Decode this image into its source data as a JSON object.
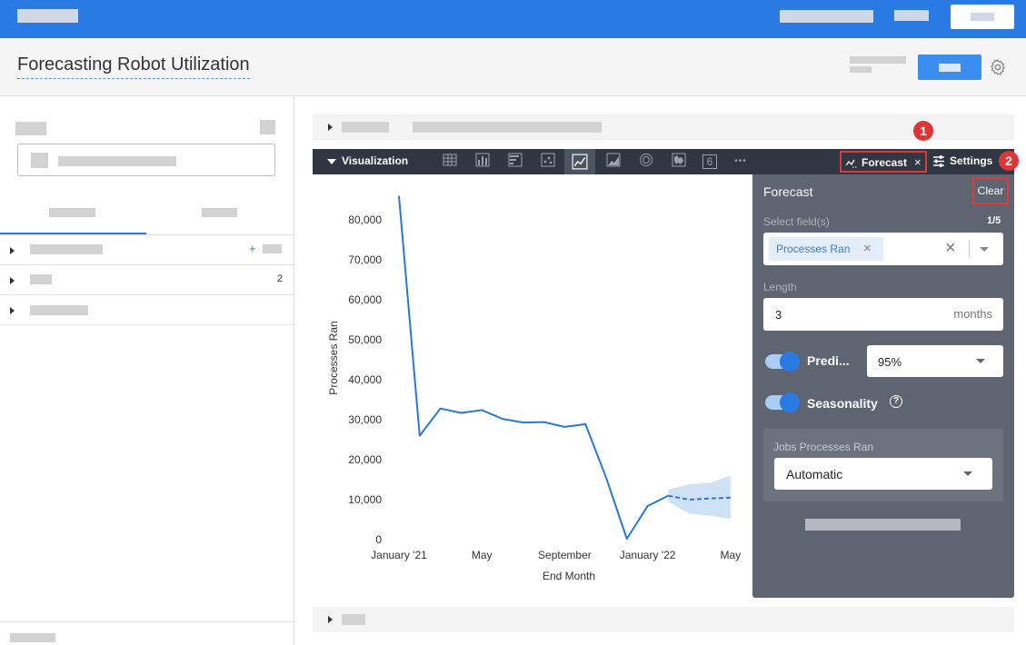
{
  "header": {
    "title": "Forecasting Robot Utilization"
  },
  "left": {
    "tree_rows": [
      {
        "count": ""
      },
      {
        "count": "2"
      },
      {
        "count": ""
      }
    ]
  },
  "viz": {
    "label": "Visualization",
    "forecast_tab": "Forecast",
    "settings_tab": "Settings",
    "badge1": "1",
    "badge2": "2",
    "icons": [
      "table-icon",
      "column-chart-icon",
      "bar-chart-icon",
      "scatter-icon",
      "line-chart-icon",
      "area-chart-icon",
      "pie-chart-icon",
      "map-icon",
      "single-value-icon",
      "more-icon"
    ],
    "single_value_glyph": "6",
    "more_glyph": "•••"
  },
  "forecast_panel": {
    "title": "Forecast",
    "clear": "Clear",
    "select_label": "Select field(s)",
    "select_count": "1/5",
    "chip": "Processes Ran",
    "length_label": "Length",
    "length_value": "3",
    "length_unit": "months",
    "prediction_label": "Predi...",
    "prediction_value": "95%",
    "seasonality_label": "Seasonality",
    "help_glyph": "?",
    "jobs_label": "Jobs Processes Ran",
    "jobs_value": "Automatic"
  },
  "chart_data": {
    "type": "line",
    "xlabel": "End Month",
    "ylabel": "Processes Ran",
    "ylim": [
      0,
      90000
    ],
    "y_ticks": [
      "0",
      "10,000",
      "20,000",
      "30,000",
      "40,000",
      "50,000",
      "60,000",
      "70,000",
      "80,000"
    ],
    "x_ticks": [
      "January '21",
      "May",
      "September",
      "January '22",
      "May"
    ],
    "series": [
      {
        "values": [
          86000,
          26000,
          32800,
          31700,
          32400,
          30200,
          29300,
          29400,
          28200,
          28900,
          15500,
          200,
          8400,
          11000
        ]
      }
    ],
    "forecast": {
      "values": [
        11000,
        10000,
        10300,
        10500
      ],
      "lower": [
        9500,
        6500,
        6000,
        5200
      ],
      "upper": [
        12500,
        13800,
        14200,
        16000
      ]
    },
    "grid": false,
    "color": "#2a78d4",
    "band_color": "#c7dcf3"
  }
}
